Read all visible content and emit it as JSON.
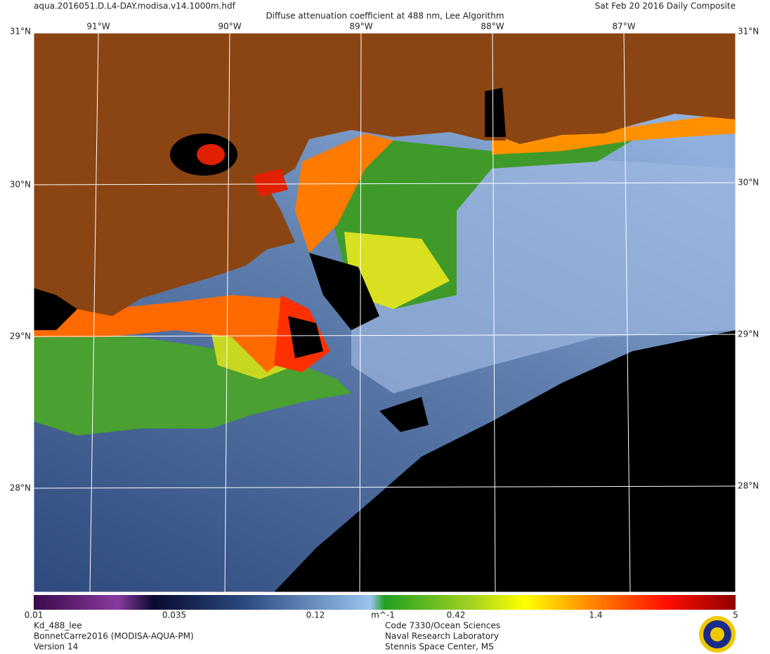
{
  "header": {
    "file": "aqua.2016051.D.L4-DAY.modisa.v14.1000m.hdf",
    "title": "Diffuse attenuation coefficient at 488 nm, Lee Algorithm",
    "date": "Sat Feb 20 2016 Daily Composite"
  },
  "map": {
    "corner_lat": "31°N",
    "lon_labels": [
      "91°W",
      "90°W",
      "89°W",
      "88°W",
      "87°W"
    ],
    "lat_labels": [
      "30°N",
      "29°N",
      "28°N"
    ]
  },
  "colorbar": {
    "labels": [
      "0.01",
      "0.035",
      "0.12",
      "m^-1",
      "0.42",
      "1.4",
      "5"
    ]
  },
  "footer": {
    "left": [
      "Kd_488_lee",
      "BonnetCarre2016 (MODISA-AQUA-PM)",
      "Version 14"
    ],
    "center": [
      "Code 7330/Ocean Sciences",
      "Naval Research Laboratory",
      "Stennis Space Center, MS"
    ]
  }
}
